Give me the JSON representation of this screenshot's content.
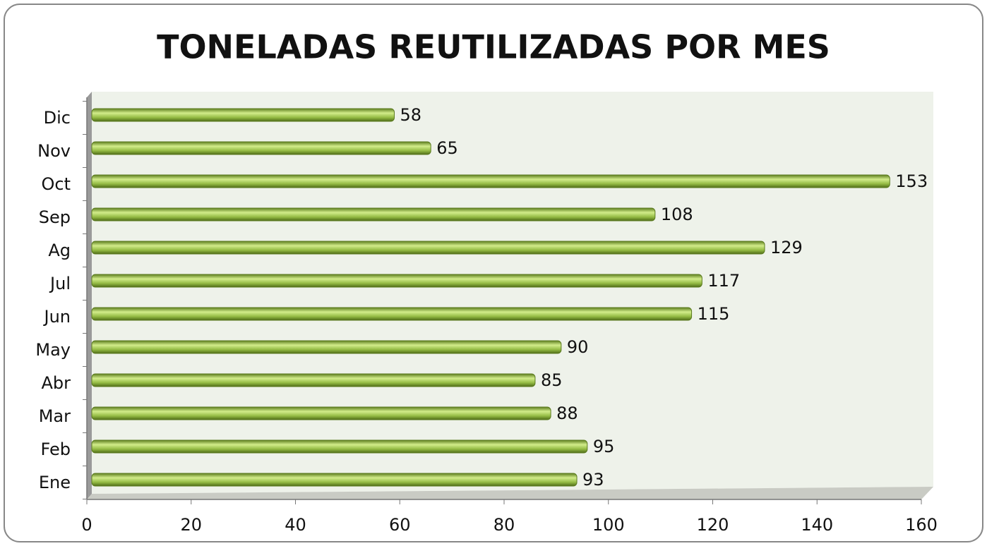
{
  "chart_data": {
    "type": "bar",
    "orientation": "horizontal",
    "title": "TONELADAS REUTILIZADAS POR MES",
    "categories": [
      "Ene",
      "Feb",
      "Mar",
      "Abr",
      "May",
      "Jun",
      "Jul",
      "Ag",
      "Sep",
      "Oct",
      "Nov",
      "Dic"
    ],
    "values": [
      93,
      95,
      88,
      85,
      90,
      115,
      117,
      129,
      108,
      153,
      65,
      58
    ],
    "color": "#8db43c",
    "xlim": [
      0,
      160
    ],
    "xticks": [
      0,
      20,
      40,
      60,
      80,
      100,
      120,
      140,
      160
    ],
    "grid": false
  }
}
